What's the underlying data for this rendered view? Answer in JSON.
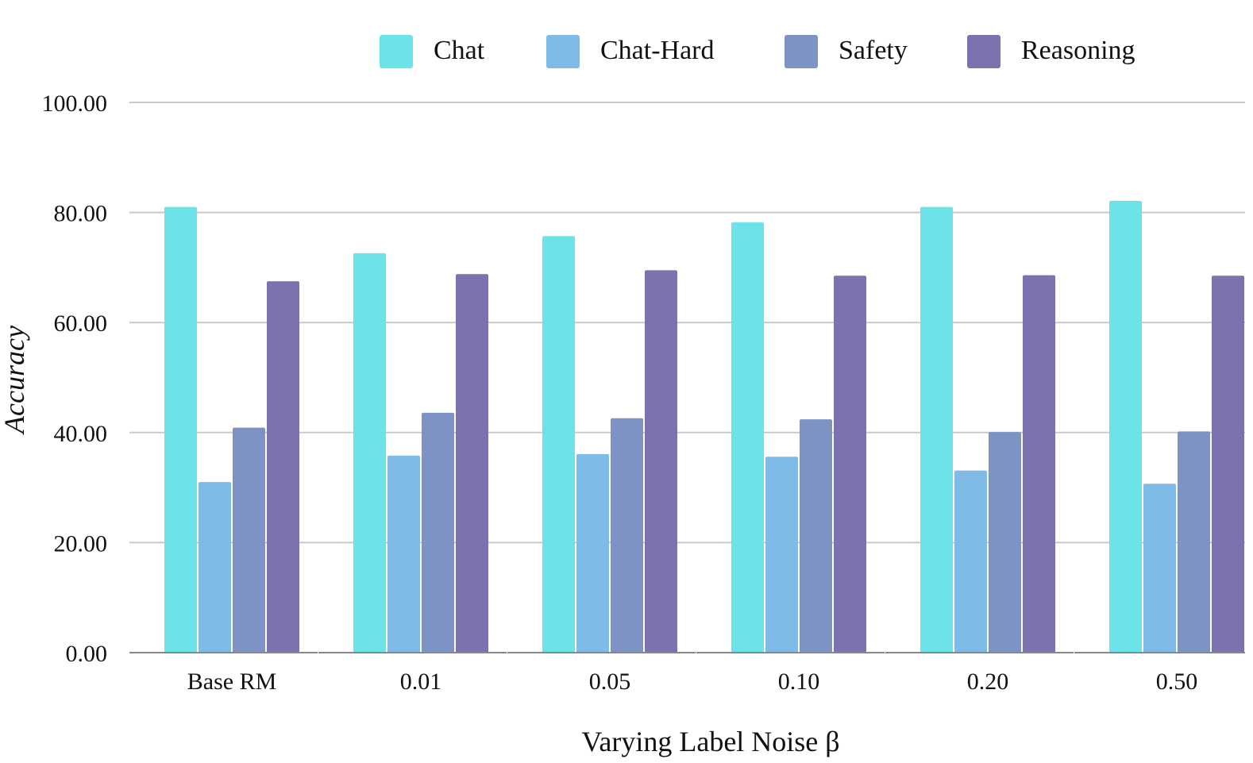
{
  "chart_data": {
    "type": "bar",
    "title": "",
    "xlabel": "Varying Label Noise β",
    "ylabel": "Accuracy",
    "ylim": [
      0,
      100
    ],
    "yticks": [
      "0.00",
      "20.00",
      "40.00",
      "60.00",
      "80.00",
      "100.00"
    ],
    "categories": [
      "Base RM",
      "0.01",
      "0.05",
      "0.10",
      "0.20",
      "0.50"
    ],
    "series": [
      {
        "name": "Chat",
        "color": "#6ce3e8",
        "values": [
          81.0,
          72.6,
          75.7,
          78.2,
          81.0,
          82.1
        ]
      },
      {
        "name": "Chat-Hard",
        "color": "#80bbe8",
        "values": [
          31.0,
          35.8,
          36.1,
          35.6,
          33.1,
          30.7
        ]
      },
      {
        "name": "Safety",
        "color": "#7d93c4",
        "values": [
          40.9,
          43.6,
          42.6,
          42.4,
          40.1,
          40.2
        ]
      },
      {
        "name": "Reasoning",
        "color": "#7b72ae",
        "values": [
          67.5,
          68.8,
          69.5,
          68.5,
          68.6,
          68.5
        ]
      }
    ],
    "legend": "top",
    "grid": true
  }
}
